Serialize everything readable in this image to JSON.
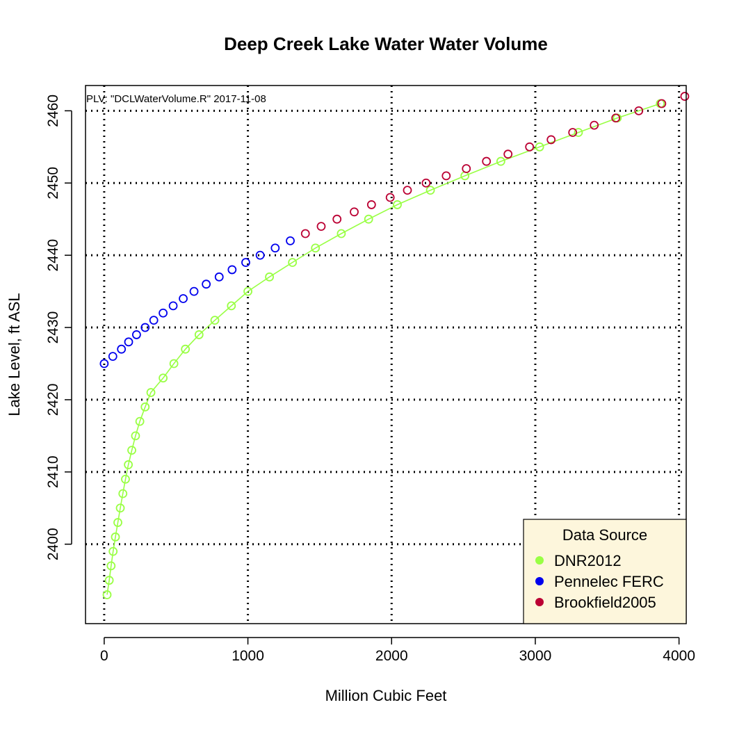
{
  "chart_data": {
    "type": "scatter",
    "title": "Deep Creek Lake Water Water Volume",
    "xlabel": "Million Cubic Feet",
    "ylabel": "Lake Level, ft ASL",
    "annotation": "PLV: \"DCLWaterVolume.R\"  2017-11-08",
    "xlim": [
      -130,
      4050
    ],
    "ylim": [
      2389,
      2463.5
    ],
    "xticks": [
      0,
      1000,
      2000,
      3000,
      4000
    ],
    "yticks": [
      2400,
      2410,
      2420,
      2430,
      2440,
      2450,
      2460
    ],
    "grid": true,
    "legend": {
      "title": "Data Source",
      "placement": "bottom-right",
      "entries": [
        "DNR2012",
        "Pennelec FERC",
        "Brookfield2005"
      ]
    },
    "series": [
      {
        "name": "DNR2012",
        "color": "#99ff44",
        "line": true,
        "points": [
          [
            20,
            2393
          ],
          [
            35,
            2395
          ],
          [
            48,
            2397
          ],
          [
            62,
            2399
          ],
          [
            78,
            2401
          ],
          [
            95,
            2403
          ],
          [
            112,
            2405
          ],
          [
            130,
            2407
          ],
          [
            148,
            2409
          ],
          [
            168,
            2411
          ],
          [
            192,
            2413
          ],
          [
            218,
            2415
          ],
          [
            248,
            2417
          ],
          [
            285,
            2419
          ],
          [
            325,
            2421
          ],
          [
            410,
            2423
          ],
          [
            485,
            2425
          ],
          [
            565,
            2427
          ],
          [
            660,
            2429
          ],
          [
            770,
            2431
          ],
          [
            885,
            2433
          ],
          [
            1000,
            2435
          ],
          [
            1150,
            2437
          ],
          [
            1310,
            2439
          ],
          [
            1470,
            2441
          ],
          [
            1650,
            2443
          ],
          [
            1840,
            2445
          ],
          [
            2040,
            2447
          ],
          [
            2270,
            2449
          ],
          [
            2510,
            2451
          ],
          [
            2760,
            2453
          ],
          [
            3030,
            2455
          ],
          [
            3300,
            2457
          ],
          [
            3570,
            2459
          ],
          [
            3870,
            2461
          ]
        ]
      },
      {
        "name": "Pennelec FERC",
        "color": "#0000ee",
        "line": false,
        "points": [
          [
            0,
            2425
          ],
          [
            60,
            2426
          ],
          [
            120,
            2427
          ],
          [
            170,
            2428
          ],
          [
            225,
            2429
          ],
          [
            285,
            2430
          ],
          [
            345,
            2431
          ],
          [
            410,
            2432
          ],
          [
            480,
            2433
          ],
          [
            550,
            2434
          ],
          [
            625,
            2435
          ],
          [
            710,
            2436
          ],
          [
            800,
            2437
          ],
          [
            890,
            2438
          ],
          [
            985,
            2439
          ],
          [
            1085,
            2440
          ],
          [
            1190,
            2441
          ],
          [
            1295,
            2442
          ]
        ]
      },
      {
        "name": "Brookfield2005",
        "color": "#bb0033",
        "line": false,
        "points": [
          [
            1400,
            2443
          ],
          [
            1510,
            2444
          ],
          [
            1620,
            2445
          ],
          [
            1740,
            2446
          ],
          [
            1860,
            2447
          ],
          [
            1990,
            2448
          ],
          [
            2110,
            2449
          ],
          [
            2240,
            2450
          ],
          [
            2380,
            2451
          ],
          [
            2520,
            2452
          ],
          [
            2660,
            2453
          ],
          [
            2810,
            2454
          ],
          [
            2960,
            2455
          ],
          [
            3110,
            2456
          ],
          [
            3260,
            2457
          ],
          [
            3410,
            2458
          ],
          [
            3560,
            2459
          ],
          [
            3720,
            2460
          ],
          [
            3880,
            2461
          ],
          [
            4040,
            2462
          ]
        ]
      }
    ]
  }
}
